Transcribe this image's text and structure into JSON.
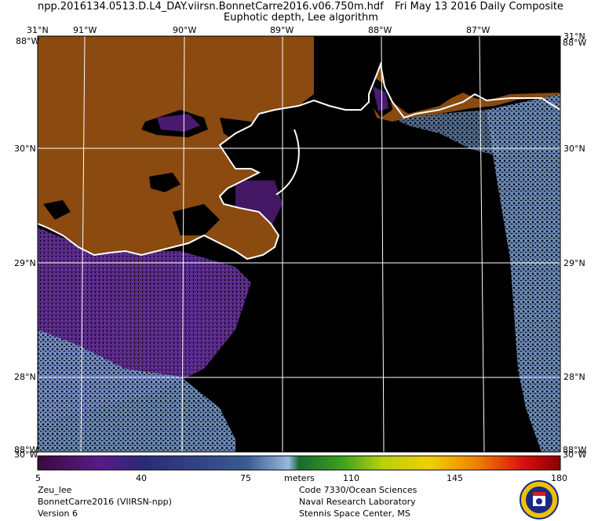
{
  "header": {
    "filename": "npp.2016134.0513.D.L4_DAY.viirsn.BonnetCarre2016.v06.750m.hdf",
    "date": "Fri May 13 2016 Daily Composite",
    "product": "Euphotic depth, Lee algorithm"
  },
  "axes": {
    "top_lon": [
      "31°N",
      "91°W",
      "90°W",
      "89°W",
      "88°W",
      "87°W",
      "31°N"
    ],
    "lat_left": [
      "30°N",
      "29°N",
      "28°N"
    ],
    "lat_right": [
      "30°N",
      "29°N",
      "28°N"
    ],
    "corner_top_left": "88°W",
    "corner_top_right": "88°W",
    "corner_bottom_left": "88°W",
    "corner_bottom_right": "88°W",
    "bottom_left_overlay": "30°W",
    "bottom_right_overlay": "30°W"
  },
  "colorbar": {
    "ticks": [
      "5",
      "40",
      "75",
      "110",
      "145",
      "180"
    ],
    "units": "meters",
    "range": [
      5,
      180
    ]
  },
  "footer_left": {
    "line1": "Zeu_lee",
    "line2": "BonnetCarre2016 (VIIRSN-npp)",
    "line3": "Version 6"
  },
  "footer_right": {
    "line1": "Code 7330/Ocean Sciences",
    "line2": "Naval Research Laboratory",
    "line3": "Stennis Space Center, MS"
  },
  "colors": {
    "land": "#8a4a10",
    "ocean_nodata": "#000000",
    "coast": "#ffffff",
    "grid": "#ffffff",
    "purple_low": "#5a2a8a",
    "blue_mid": "#6a8ab8"
  }
}
